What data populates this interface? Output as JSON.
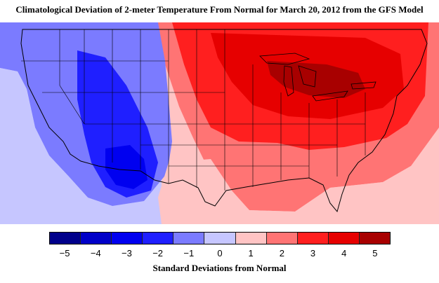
{
  "title": "Climatological Deviation of 2-meter Temperature From Normal for March 20, 2012 from the GFS Model",
  "legend": {
    "label": "Standard Deviations from Normal",
    "ticks": [
      "−5",
      "−4",
      "−3",
      "−2",
      "−1",
      "0",
      "1",
      "2",
      "3",
      "4",
      "5"
    ],
    "colors": [
      "#00008b",
      "#0000c8",
      "#0000f0",
      "#1f1fff",
      "#7b7bff",
      "#c6c6ff",
      "#ffc4c4",
      "#ff7474",
      "#ff1f1f",
      "#e60000",
      "#a80000"
    ]
  },
  "map": {
    "region": "Contiguous United States",
    "colors": {
      "background_light_blue": "#c6c6ff",
      "west_blue": "#7b7bff",
      "rockies_dark_blue": "#1f1fff",
      "deep_blue": "#0000f0",
      "pink": "#ffc4c4",
      "light_red": "#ff7474",
      "red": "#ff1f1f",
      "dark_red": "#e60000",
      "maroon": "#a80000",
      "boundaries": "#000000"
    }
  }
}
